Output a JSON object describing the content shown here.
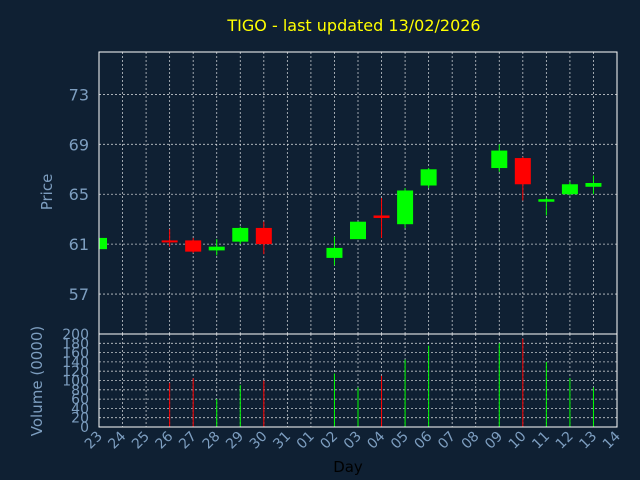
{
  "chart_data": {
    "title": "TIGO - last updated 13/02/2026",
    "colors": {
      "up": "#00ff00",
      "down": "#ff0000",
      "grid": "#ffffff",
      "frame": "#ffffff",
      "title": "#ffff00",
      "tick": "#7d9ec0",
      "background": "#0f2033"
    },
    "price_panel": {
      "type": "candlestick",
      "ylabel": "Price",
      "ylim": [
        53.8,
        76.4
      ],
      "yticks": [
        57,
        61,
        65,
        69,
        73
      ],
      "grid": true
    },
    "volume_panel": {
      "type": "bar",
      "ylabel": "Volume (0000)",
      "ylim": [
        0,
        200
      ],
      "yticks": [
        0,
        20,
        40,
        60,
        80,
        100,
        120,
        140,
        160,
        180,
        200
      ],
      "grid": true
    },
    "x": {
      "xlabel": "Day",
      "categories": [
        "23",
        "24",
        "25",
        "26",
        "27",
        "28",
        "29",
        "30",
        "31",
        "01",
        "02",
        "03",
        "04",
        "05",
        "06",
        "07",
        "08",
        "09",
        "10",
        "11",
        "12",
        "13",
        "14"
      ]
    },
    "candles": [
      {
        "day": "23",
        "open": 60.6,
        "high": 61.5,
        "low": 60.6,
        "close": 61.5,
        "volume": 0
      },
      {
        "day": "26",
        "open": 61.3,
        "high": 62.2,
        "low": 60.8,
        "close": 61.2,
        "volume": 95
      },
      {
        "day": "27",
        "open": 61.3,
        "high": 61.5,
        "low": 60.3,
        "close": 60.4,
        "volume": 105
      },
      {
        "day": "28",
        "open": 60.5,
        "high": 61.4,
        "low": 60.1,
        "close": 60.8,
        "volume": 60
      },
      {
        "day": "29",
        "open": 61.2,
        "high": 62.4,
        "low": 61.0,
        "close": 62.3,
        "volume": 90
      },
      {
        "day": "30",
        "open": 62.3,
        "high": 62.8,
        "low": 60.2,
        "close": 61.0,
        "volume": 100
      },
      {
        "day": "02",
        "open": 59.9,
        "high": 61.6,
        "low": 59.3,
        "close": 60.7,
        "volume": 115
      },
      {
        "day": "03",
        "open": 61.4,
        "high": 62.8,
        "low": 61.4,
        "close": 62.8,
        "volume": 85
      },
      {
        "day": "04",
        "open": 63.3,
        "high": 64.7,
        "low": 61.5,
        "close": 63.1,
        "volume": 110
      },
      {
        "day": "05",
        "open": 62.6,
        "high": 65.5,
        "low": 62.3,
        "close": 65.3,
        "volume": 145
      },
      {
        "day": "06",
        "open": 65.7,
        "high": 67.1,
        "low": 65.5,
        "close": 67.0,
        "volume": 175
      },
      {
        "day": "09",
        "open": 67.1,
        "high": 69.0,
        "low": 66.8,
        "close": 68.5,
        "volume": 180
      },
      {
        "day": "10",
        "open": 67.9,
        "high": 68.0,
        "low": 64.5,
        "close": 65.8,
        "volume": 190
      },
      {
        "day": "11",
        "open": 64.4,
        "high": 64.7,
        "low": 63.3,
        "close": 64.6,
        "volume": 140
      },
      {
        "day": "12",
        "open": 65.0,
        "high": 66.0,
        "low": 64.9,
        "close": 65.8,
        "volume": 105
      },
      {
        "day": "13",
        "open": 65.6,
        "high": 66.5,
        "low": 65.0,
        "close": 65.9,
        "volume": 85
      }
    ]
  }
}
